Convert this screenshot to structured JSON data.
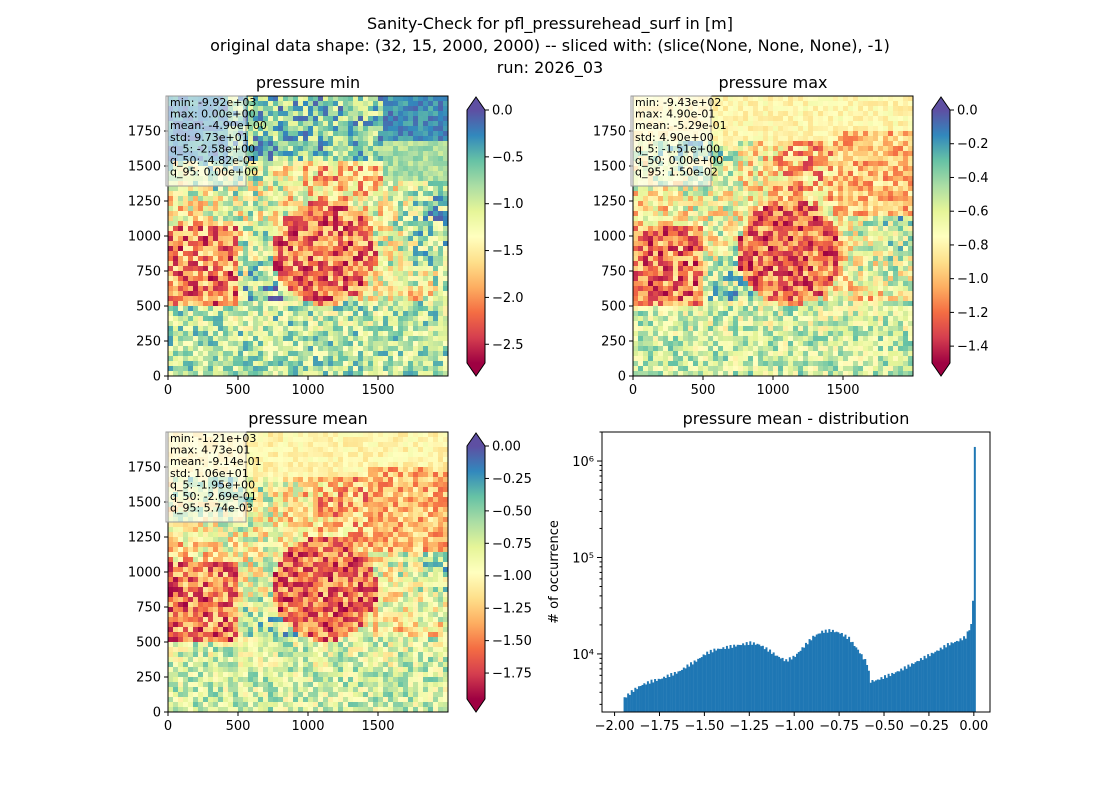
{
  "figure": {
    "title_lines": [
      "Sanity-Check for pfl_pressurehead_surf in [m]",
      "original data shape: (32, 15, 2000, 2000) -- sliced with: (slice(None, None, None), -1)",
      "run: 2026_03"
    ]
  },
  "colormap": {
    "name": "Spectral",
    "stops": [
      "#9e0142",
      "#d53e4f",
      "#f46d43",
      "#fdae61",
      "#fee08b",
      "#ffffbf",
      "#e6f598",
      "#abdda4",
      "#66c2a5",
      "#3288bd",
      "#5e4fa2"
    ]
  },
  "chart_data": [
    {
      "type": "heatmap",
      "title": "pressure min",
      "x_ticks": [
        "0",
        "500",
        "1000",
        "1500"
      ],
      "x_tick_values": [
        0,
        500,
        1000,
        1500
      ],
      "y_ticks": [
        "0",
        "250",
        "500",
        "750",
        "1000",
        "1250",
        "1500",
        "1750"
      ],
      "y_tick_values": [
        0,
        250,
        500,
        750,
        1000,
        1250,
        1500,
        1750
      ],
      "xlim": [
        0,
        2000
      ],
      "ylim": [
        0,
        2000
      ],
      "colorbar": {
        "range": [
          -2.7,
          0.0
        ],
        "ticks": [
          "0.0",
          "−0.5",
          "−1.0",
          "−1.5",
          "−2.0",
          "−2.5"
        ],
        "tick_values": [
          0.0,
          -0.5,
          -1.0,
          -1.5,
          -2.0,
          -2.5
        ],
        "extend": "both"
      },
      "stats": [
        "min: -9.92e+03",
        "max: 0.00e+00",
        "mean: -4.90e+00",
        "std: 9.73e+01",
        "q_5: -2.58e+00",
        "q_50: -4.82e-01",
        "q_95: 0.00e+00"
      ]
    },
    {
      "type": "heatmap",
      "title": "pressure max",
      "x_ticks": [
        "0",
        "500",
        "1000",
        "1500"
      ],
      "x_tick_values": [
        0,
        500,
        1000,
        1500
      ],
      "y_ticks": [
        "0",
        "250",
        "500",
        "750",
        "1000",
        "1250",
        "1500",
        "1750"
      ],
      "y_tick_values": [
        0,
        250,
        500,
        750,
        1000,
        1250,
        1500,
        1750
      ],
      "xlim": [
        0,
        2000
      ],
      "ylim": [
        0,
        2000
      ],
      "colorbar": {
        "range": [
          -1.5,
          0.0
        ],
        "ticks": [
          "0.0",
          "−0.2",
          "−0.4",
          "−0.6",
          "−0.8",
          "−1.0",
          "−1.2",
          "−1.4"
        ],
        "tick_values": [
          0.0,
          -0.2,
          -0.4,
          -0.6,
          -0.8,
          -1.0,
          -1.2,
          -1.4
        ],
        "extend": "both"
      },
      "stats": [
        "min: -9.43e+02",
        "max: 4.90e-01",
        "mean: -5.29e-01",
        "std: 4.90e+00",
        "q_5: -1.51e+00",
        "q_50: 0.00e+00",
        "q_95: 1.50e-02"
      ]
    },
    {
      "type": "heatmap",
      "title": "pressure mean",
      "x_ticks": [
        "0",
        "500",
        "1000",
        "1500"
      ],
      "x_tick_values": [
        0,
        500,
        1000,
        1500
      ],
      "y_ticks": [
        "0",
        "250",
        "500",
        "750",
        "1000",
        "1250",
        "1500",
        "1750"
      ],
      "y_tick_values": [
        0,
        250,
        500,
        750,
        1000,
        1250,
        1500,
        1750
      ],
      "xlim": [
        0,
        2000
      ],
      "ylim": [
        0,
        2000
      ],
      "colorbar": {
        "range": [
          -1.95,
          0.0
        ],
        "ticks": [
          "0.00",
          "−0.25",
          "−0.50",
          "−0.75",
          "−1.00",
          "−1.25",
          "−1.50",
          "−1.75"
        ],
        "tick_values": [
          0.0,
          -0.25,
          -0.5,
          -0.75,
          -1.0,
          -1.25,
          -1.5,
          -1.75
        ],
        "extend": "both"
      },
      "stats": [
        "min: -1.21e+03",
        "max: 4.73e-01",
        "mean: -9.14e-01",
        "std: 1.06e+01",
        "q_5: -1.95e+00",
        "q_50: -2.69e-01",
        "q_95: 5.74e-03"
      ]
    },
    {
      "type": "bar",
      "title": "pressure mean - distribution",
      "ylabel": "# of occurrence",
      "yscale": "log",
      "xlim": [
        -2.07,
        0.09
      ],
      "ylim": [
        2500,
        2000000
      ],
      "x_ticks": [
        "−2.00",
        "−1.75",
        "−1.50",
        "−1.25",
        "−1.00",
        "−0.75",
        "−0.50",
        "−0.25",
        "0.00"
      ],
      "x_tick_values": [
        -2.0,
        -1.75,
        -1.5,
        -1.25,
        -1.0,
        -0.75,
        -0.5,
        -0.25,
        0.0
      ],
      "y_ticks": [
        "10⁴",
        "10⁵",
        "10⁶"
      ],
      "y_tick_values": [
        10000,
        100000,
        1000000
      ],
      "bar_color": "#1f77b4",
      "bins_x": [
        -1.95,
        -1.9,
        -1.85,
        -1.8,
        -1.75,
        -1.7,
        -1.65,
        -1.6,
        -1.55,
        -1.5,
        -1.45,
        -1.4,
        -1.35,
        -1.3,
        -1.25,
        -1.2,
        -1.15,
        -1.1,
        -1.05,
        -1.0,
        -0.95,
        -0.9,
        -0.85,
        -0.8,
        -0.75,
        -0.7,
        -0.65,
        -0.6,
        -0.58,
        -0.55,
        -0.5,
        -0.45,
        -0.4,
        -0.35,
        -0.3,
        -0.25,
        -0.2,
        -0.15,
        -0.1,
        -0.05,
        -0.02,
        -0.01,
        0.0
      ],
      "bins_y": [
        3500,
        4200,
        4800,
        5200,
        5500,
        6000,
        6500,
        7500,
        8500,
        10000,
        11000,
        11500,
        12000,
        12500,
        13000,
        12500,
        11000,
        9500,
        8500,
        9500,
        12000,
        15000,
        17000,
        17500,
        16500,
        14500,
        11000,
        8000,
        5200,
        5300,
        5800,
        6300,
        7000,
        7800,
        8800,
        9800,
        11000,
        12500,
        13500,
        15000,
        20000,
        36000,
        1400000
      ]
    }
  ]
}
